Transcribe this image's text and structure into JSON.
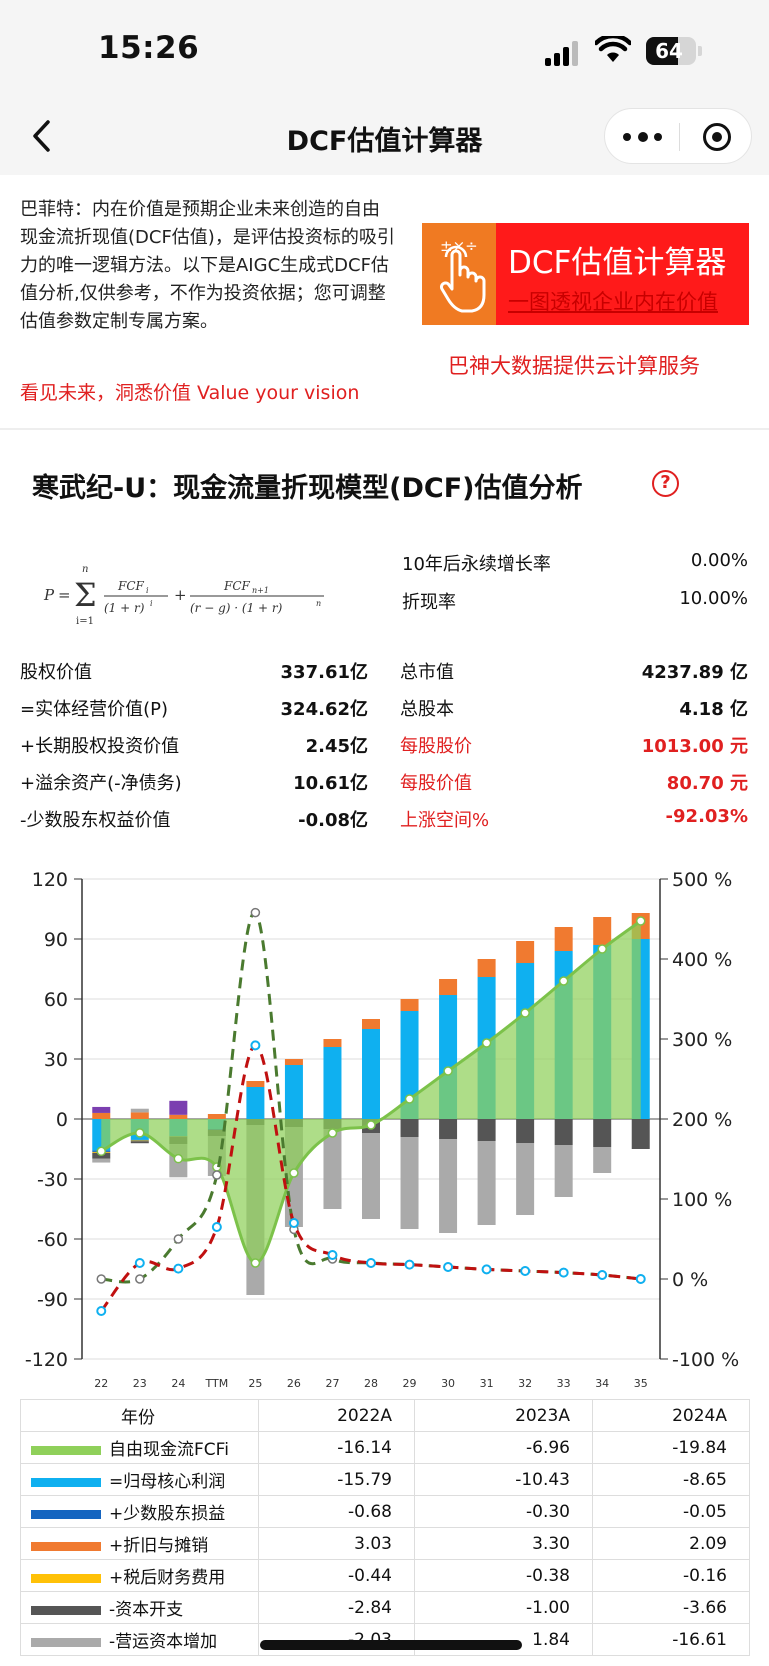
{
  "status": {
    "time": "15:26",
    "battery": "64",
    "battery_level": 0.64
  },
  "nav": {
    "title": "DCF估值计算器"
  },
  "intro": {
    "text": "巴菲特：内在价值是预期企业未来创造的自由现金流折现值(DCF估值)，是评估投资标的吸引力的唯一逻辑方法。以下是AIGC生成式DCF估值分析,仅供参考，不作为投资依据；您可调整估值参数定制专属方案。",
    "slogan": "看见未来，洞悉价值 Value your vision"
  },
  "banner": {
    "ops": "±×÷",
    "title": "DCF估值计算器",
    "subtitle": "一图透视企业内在价值",
    "cloud": "巴神大数据提供云计算服务"
  },
  "model": {
    "title": "寒武纪-U：现金流量折现模型(DCF)估值分析",
    "help": "?"
  },
  "params": {
    "growth_label": "10年后永续增长率",
    "growth_value": "0.00%",
    "discount_label": "折现率",
    "discount_value": "10.00%"
  },
  "values": {
    "left": [
      {
        "label": "股权价值",
        "value": "337.61亿"
      },
      {
        "label": "=实体经营价值(P)",
        "value": "324.62亿"
      },
      {
        "label": "+长期股权投资价值",
        "value": "2.45亿"
      },
      {
        "label": "+溢余资产(-净债务)",
        "value": "10.61亿"
      },
      {
        "label": "-少数股东权益价值",
        "value": "-0.08亿"
      }
    ],
    "right": [
      {
        "label": "总市值",
        "value": "4237.89 亿"
      },
      {
        "label": "总股本",
        "value": "4.18 亿"
      },
      {
        "label": "每股股价",
        "value": "1013.00 元"
      },
      {
        "label": "每股价值",
        "value": "80.70 元"
      },
      {
        "label": "上涨空间%",
        "value": "-92.03%"
      }
    ]
  },
  "colors": {
    "fcf": "#8fd05a",
    "profit": "#0fb0f0",
    "minority": "#1565c0",
    "dep": "#f07a30",
    "fin": "#ffc107",
    "capex": "#555555",
    "wc": "#aaaaaa",
    "equity": "#7b3fb0",
    "red": "#e02020",
    "green_line": "#4a7a2f",
    "red_line": "#c01010"
  },
  "chart_data": {
    "type": "bar",
    "categories": [
      "22",
      "23",
      "24",
      "TTM",
      "25",
      "26",
      "27",
      "28",
      "29",
      "30",
      "31",
      "32",
      "33",
      "34",
      "35"
    ],
    "y_ticks": [
      "120",
      "90",
      "60",
      "30",
      "0",
      "-30",
      "-60",
      "-90",
      "-120"
    ],
    "y2_ticks": [
      "500 %",
      "400 %",
      "300 %",
      "200 %",
      "100 %",
      "0 %",
      "-100 %"
    ],
    "ylim": [
      -120,
      120
    ],
    "y2lim": [
      -100,
      500
    ],
    "series": [
      {
        "values": [
          -15.79,
          -10.43,
          -8.65,
          -5,
          16,
          27,
          36,
          45,
          54,
          62,
          71,
          78,
          84,
          87,
          90
        ]
      },
      {
        "values": [
          -0.68,
          -0.3,
          -0.05,
          -0.5,
          0,
          0,
          0,
          0,
          0,
          0,
          0,
          0,
          0,
          0,
          0
        ]
      },
      {
        "values": [
          3.03,
          3.3,
          2.09,
          2.5,
          3,
          3,
          4,
          5,
          6,
          8,
          9,
          11,
          12,
          14,
          13
        ]
      },
      {
        "values": [
          -0.44,
          -0.38,
          -0.16,
          0,
          0,
          0,
          0,
          0,
          0,
          0,
          0,
          0,
          0,
          0,
          0
        ]
      },
      {
        "values": [
          -2.84,
          -1.0,
          -3.66,
          -3,
          -3,
          -4,
          -5,
          -7,
          -9,
          -10,
          -11,
          -12,
          -13,
          -14,
          -15
        ]
      },
      {
        "values": [
          -2.03,
          1.84,
          -16.61,
          -20,
          -85,
          -50,
          -40,
          -43,
          -46,
          -47,
          -42,
          -36,
          -26,
          -13,
          0
        ]
      },
      {
        "values": [
          3,
          0,
          7,
          0,
          0,
          0,
          0,
          0,
          0,
          0,
          0,
          0,
          0,
          0,
          0
        ]
      },
      {
        "values": [
          -16.14,
          -6.96,
          -19.84,
          -24,
          -72,
          -27,
          -7,
          -3,
          10,
          24,
          38,
          53,
          69,
          85,
          99
        ]
      },
      {
        "values": [
          0,
          0,
          50,
          130,
          458,
          62,
          25,
          20,
          18,
          15,
          12,
          10,
          8,
          5,
          0
        ]
      },
      {
        "values": [
          -40,
          20,
          13,
          65,
          292,
          70,
          30,
          20,
          18,
          15,
          12,
          10,
          8,
          5,
          0
        ]
      }
    ]
  },
  "table": {
    "headers": [
      "年份",
      "2022A",
      "2023A",
      "2024A"
    ],
    "rows": [
      {
        "label": "自由现金流FCFi",
        "values": [
          "-16.14",
          "-6.96",
          "-19.84"
        ]
      },
      {
        "label": "=归母核心利润",
        "values": [
          "-15.79",
          "-10.43",
          "-8.65"
        ]
      },
      {
        "label": "+少数股东损益",
        "values": [
          "-0.68",
          "-0.30",
          "-0.05"
        ]
      },
      {
        "label": "+折旧与摊销",
        "values": [
          "3.03",
          "3.30",
          "2.09"
        ]
      },
      {
        "label": "+税后财务费用",
        "values": [
          "-0.44",
          "-0.38",
          "-0.16"
        ]
      },
      {
        "label": "-资本开支",
        "values": [
          "-2.84",
          "-1.00",
          "-3.66"
        ]
      },
      {
        "label": "-营运资本增加",
        "values": [
          "-2.03",
          "1.84",
          "-16.61"
        ]
      }
    ]
  }
}
